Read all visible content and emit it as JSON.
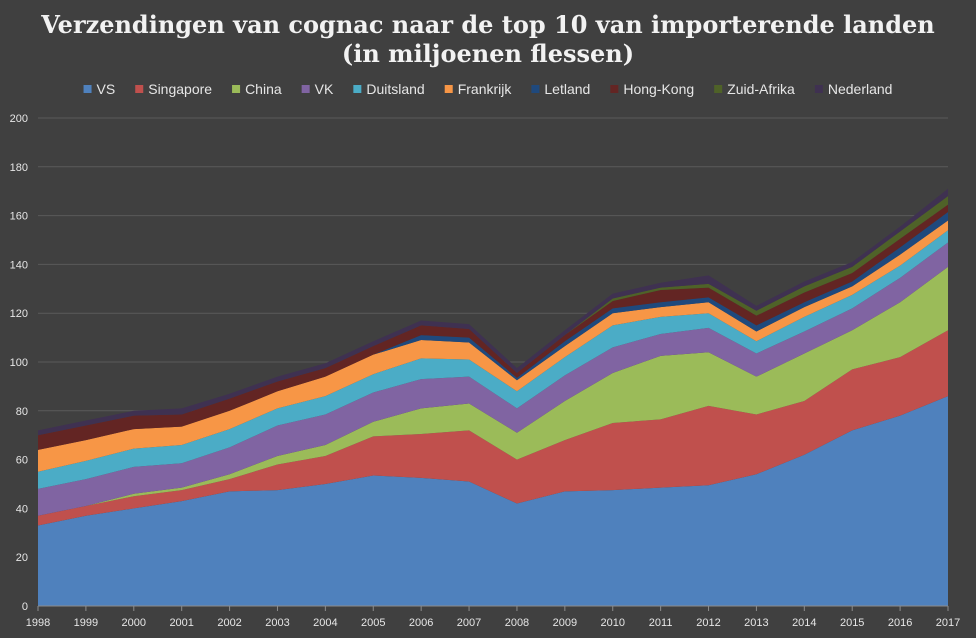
{
  "chart_data": {
    "type": "area",
    "stacked": true,
    "title_lines": [
      "Verzendingen van cognac naar de top 10 van importerende landen",
      "(in miljoenen flessen)"
    ],
    "x": [
      "1998",
      "1999",
      "2000",
      "2001",
      "2002",
      "2003",
      "2004",
      "2005",
      "2006",
      "2007",
      "2008",
      "2009",
      "2010",
      "2011",
      "2012",
      "2013",
      "2014",
      "2015",
      "2016",
      "2017"
    ],
    "ylim": [
      0,
      200
    ],
    "yticks": [
      "0",
      "20",
      "40",
      "60",
      "80",
      "100",
      "120",
      "140",
      "160",
      "180",
      "200"
    ],
    "grid": true,
    "legend_position": "top",
    "series": [
      {
        "name": "VS",
        "color": "#4f81bd",
        "values": [
          33,
          37,
          40,
          43,
          47,
          47.5,
          50,
          53.5,
          52.5,
          51,
          42,
          47,
          47.5,
          48.5,
          49.5,
          54,
          62,
          72,
          78,
          86
        ]
      },
      {
        "name": "Singapore",
        "color": "#c0504d",
        "values": [
          4,
          4,
          5,
          4.5,
          5,
          10.5,
          11.5,
          16,
          18,
          21,
          18,
          21,
          27.5,
          28,
          32.5,
          24.5,
          22,
          25,
          24,
          27
        ]
      },
      {
        "name": "China",
        "color": "#9bbb59",
        "values": [
          0,
          0,
          1,
          1,
          2,
          3.5,
          4.5,
          6,
          10.5,
          11,
          11,
          16,
          20.5,
          26,
          22,
          15.5,
          19.5,
          16,
          22.5,
          26
        ]
      },
      {
        "name": "VK",
        "color": "#8064a2",
        "values": [
          11,
          11,
          11,
          10,
          11,
          12.5,
          12.5,
          12,
          12,
          11,
          10,
          10.5,
          10.5,
          9,
          10,
          9.5,
          9,
          9,
          10,
          10
        ]
      },
      {
        "name": "Duitsland",
        "color": "#4bacc6",
        "values": [
          7,
          7.5,
          7.5,
          7.5,
          7.5,
          7,
          7.5,
          7.5,
          8.5,
          7,
          7,
          7.5,
          9,
          7,
          6,
          5,
          6,
          5.5,
          5,
          5
        ]
      },
      {
        "name": "Frankrijk",
        "color": "#f79646",
        "values": [
          9,
          8.5,
          8,
          7.5,
          7.5,
          7,
          8,
          8,
          7.5,
          7,
          4.5,
          4.5,
          5,
          4,
          4.5,
          4,
          4,
          3.5,
          4.5,
          4
        ]
      },
      {
        "name": "Letland",
        "color": "#1f497d",
        "values": [
          0,
          0,
          0,
          0,
          0,
          0,
          0,
          0,
          2,
          2,
          1,
          2,
          2,
          2,
          2,
          2.5,
          2,
          2,
          3,
          3.5
        ]
      },
      {
        "name": "Hong-Kong",
        "color": "#632523",
        "values": [
          6,
          6,
          5.5,
          5,
          5,
          4,
          3.5,
          3.5,
          4,
          3.5,
          2,
          2.5,
          3,
          5,
          4,
          4,
          4,
          3.5,
          3.5,
          3
        ]
      },
      {
        "name": "Zuid-Afrika",
        "color": "#4f6228",
        "values": [
          0,
          0,
          0,
          0,
          0,
          0,
          0,
          0,
          0,
          0,
          0,
          0,
          1,
          1,
          1.5,
          2,
          2.5,
          2.5,
          3,
          3.5
        ]
      },
      {
        "name": "Nederland",
        "color": "#3f3151",
        "values": [
          2,
          2,
          2,
          2.5,
          2,
          2,
          2,
          2,
          2,
          2,
          2,
          2,
          2,
          2,
          3.5,
          2,
          2,
          2,
          2,
          3
        ]
      }
    ]
  }
}
